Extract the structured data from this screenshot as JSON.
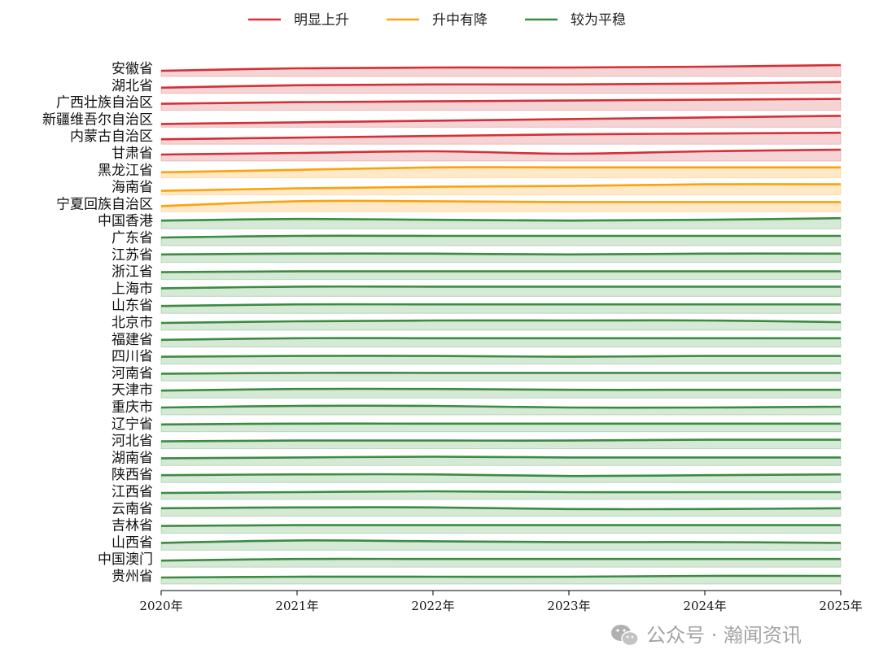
{
  "chart_data": {
    "type": "area",
    "title": "",
    "xlabel": "",
    "ylabel": "",
    "x": [
      "2020年",
      "2021年",
      "2022年",
      "2023年",
      "2024年",
      "2025年"
    ],
    "legend": {
      "placement": "top",
      "entries": [
        {
          "name": "明显上升",
          "color": "#d62f35"
        },
        {
          "name": "升中有降",
          "color": "#ffa10a"
        },
        {
          "name": "较为平稳",
          "color": "#3a8c3f"
        }
      ]
    },
    "series_fill_colors": {
      "明显上升": "#f4d4d5",
      "升中有降": "#ffe9c9",
      "较为平稳": "#d6e8d6"
    },
    "series": [
      {
        "name": "安徽省",
        "group": "明显上升",
        "values": [
          0.35,
          0.5,
          0.55,
          0.55,
          0.6,
          0.7
        ]
      },
      {
        "name": "湖北省",
        "group": "明显上升",
        "values": [
          0.35,
          0.5,
          0.55,
          0.55,
          0.6,
          0.7
        ]
      },
      {
        "name": "广西壮族自治区",
        "group": "明显上升",
        "values": [
          0.4,
          0.5,
          0.55,
          0.6,
          0.65,
          0.7
        ]
      },
      {
        "name": "新疆维吾尔自治区",
        "group": "明显上升",
        "values": [
          0.2,
          0.3,
          0.4,
          0.5,
          0.6,
          0.7
        ]
      },
      {
        "name": "内蒙古自治区",
        "group": "明显上升",
        "values": [
          0.3,
          0.4,
          0.5,
          0.6,
          0.65,
          0.7
        ]
      },
      {
        "name": "甘肃省",
        "group": "明显上升",
        "values": [
          0.4,
          0.5,
          0.6,
          0.45,
          0.6,
          0.7
        ]
      },
      {
        "name": "黑龙江省",
        "group": "升中有降",
        "values": [
          0.35,
          0.5,
          0.65,
          0.65,
          0.65,
          0.65
        ]
      },
      {
        "name": "海南省",
        "group": "升中有降",
        "values": [
          0.25,
          0.4,
          0.5,
          0.55,
          0.65,
          0.65
        ]
      },
      {
        "name": "宁夏回族自治区",
        "group": "升中有降",
        "values": [
          0.35,
          0.65,
          0.65,
          0.6,
          0.6,
          0.6
        ]
      },
      {
        "name": "中国香港",
        "group": "较为平稳",
        "values": [
          0.5,
          0.6,
          0.55,
          0.5,
          0.55,
          0.65
        ]
      },
      {
        "name": "广东省",
        "group": "较为平稳",
        "values": [
          0.5,
          0.6,
          0.6,
          0.6,
          0.6,
          0.6
        ]
      },
      {
        "name": "江苏省",
        "group": "较为平稳",
        "values": [
          0.5,
          0.55,
          0.55,
          0.5,
          0.55,
          0.55
        ]
      },
      {
        "name": "浙江省",
        "group": "较为平稳",
        "values": [
          0.45,
          0.5,
          0.5,
          0.5,
          0.5,
          0.5
        ]
      },
      {
        "name": "上海市",
        "group": "较为平稳",
        "values": [
          0.5,
          0.6,
          0.6,
          0.6,
          0.6,
          0.6
        ]
      },
      {
        "name": "山东省",
        "group": "较为平稳",
        "values": [
          0.45,
          0.55,
          0.55,
          0.55,
          0.55,
          0.55
        ]
      },
      {
        "name": "北京市",
        "group": "较为平稳",
        "values": [
          0.45,
          0.55,
          0.6,
          0.6,
          0.6,
          0.5
        ]
      },
      {
        "name": "福建省",
        "group": "较为平稳",
        "values": [
          0.45,
          0.55,
          0.55,
          0.55,
          0.55,
          0.55
        ]
      },
      {
        "name": "四川省",
        "group": "较为平稳",
        "values": [
          0.45,
          0.5,
          0.5,
          0.45,
          0.5,
          0.5
        ]
      },
      {
        "name": "河南省",
        "group": "较为平稳",
        "values": [
          0.45,
          0.5,
          0.5,
          0.5,
          0.5,
          0.5
        ]
      },
      {
        "name": "天津市",
        "group": "较为平稳",
        "values": [
          0.45,
          0.55,
          0.55,
          0.5,
          0.5,
          0.5
        ]
      },
      {
        "name": "重庆市",
        "group": "较为平稳",
        "values": [
          0.45,
          0.55,
          0.55,
          0.45,
          0.45,
          0.5
        ]
      },
      {
        "name": "辽宁省",
        "group": "较为平稳",
        "values": [
          0.45,
          0.5,
          0.5,
          0.5,
          0.5,
          0.5
        ]
      },
      {
        "name": "河北省",
        "group": "较为平稳",
        "values": [
          0.45,
          0.5,
          0.5,
          0.5,
          0.55,
          0.55
        ]
      },
      {
        "name": "湖南省",
        "group": "较为平稳",
        "values": [
          0.45,
          0.5,
          0.55,
          0.5,
          0.5,
          0.5
        ]
      },
      {
        "name": "陕西省",
        "group": "较为平稳",
        "values": [
          0.45,
          0.5,
          0.5,
          0.4,
          0.45,
          0.5
        ]
      },
      {
        "name": "江西省",
        "group": "较为平稳",
        "values": [
          0.4,
          0.45,
          0.5,
          0.45,
          0.45,
          0.45
        ]
      },
      {
        "name": "云南省",
        "group": "较为平稳",
        "values": [
          0.5,
          0.55,
          0.55,
          0.45,
          0.45,
          0.5
        ]
      },
      {
        "name": "吉林省",
        "group": "较为平稳",
        "values": [
          0.45,
          0.5,
          0.5,
          0.5,
          0.5,
          0.5
        ]
      },
      {
        "name": "山西省",
        "group": "较为平稳",
        "values": [
          0.45,
          0.6,
          0.55,
          0.5,
          0.5,
          0.45
        ]
      },
      {
        "name": "中国澳门",
        "group": "较为平稳",
        "values": [
          0.4,
          0.5,
          0.5,
          0.5,
          0.5,
          0.5
        ]
      },
      {
        "name": "贵州省",
        "group": "较为平稳",
        "values": [
          0.4,
          0.45,
          0.45,
          0.45,
          0.5,
          0.5
        ]
      }
    ],
    "grid": false
  },
  "watermark": {
    "text": "公众号 · 瀚闻资讯",
    "icon": "wechat-icon"
  }
}
